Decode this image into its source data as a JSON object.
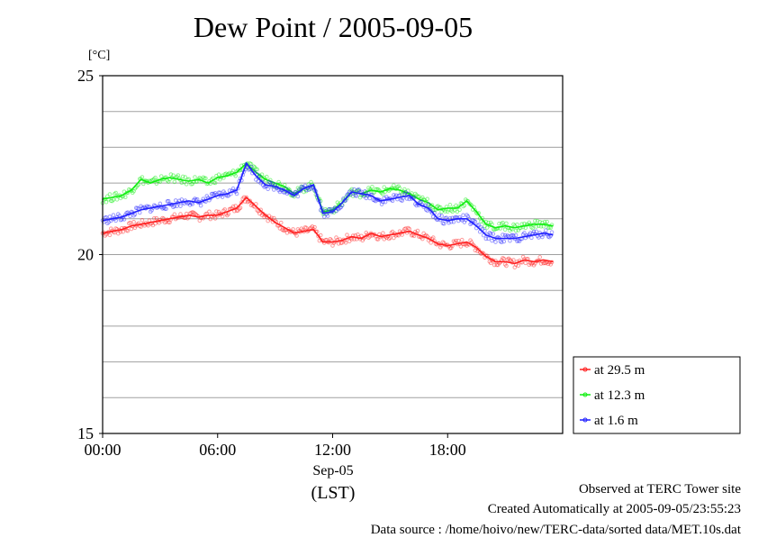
{
  "title": "Dew Point / 2005-09-05",
  "y_unit": "[°C]",
  "x_date_label": "Sep-05",
  "x_tz_label": "(LST)",
  "footer": {
    "line1": "Observed at TERC Tower site",
    "line2": "Created Automatically at 2005-09-05/23:55:23",
    "line3": "Data source : /home/hoivo/new/TERC-data/sorted  data/MET.10s.dat"
  },
  "colors": {
    "red": "#ff2020",
    "green": "#10ee10",
    "blue": "#2020ff"
  },
  "chart_data": {
    "type": "line",
    "title": "Dew Point / 2005-09-05",
    "ylabel": "[°C]",
    "xlabel": "(LST)",
    "ylim": [
      15,
      25
    ],
    "xlim": [
      0,
      24
    ],
    "y_ticks": [
      "15",
      "20",
      "25"
    ],
    "x_ticks": [
      "00:00",
      "06:00",
      "12:00",
      "18:00"
    ],
    "grid": "horizontal every 1 °C",
    "legend": "right",
    "x_hours": [
      0,
      0.5,
      1,
      1.5,
      2,
      2.5,
      3,
      3.5,
      4,
      4.5,
      5,
      5.5,
      6,
      6.5,
      7,
      7.5,
      8,
      8.5,
      9,
      9.5,
      10,
      10.5,
      11,
      11.5,
      12,
      12.5,
      13,
      13.5,
      14,
      14.5,
      15,
      15.5,
      16,
      16.5,
      17,
      17.5,
      18,
      18.5,
      19,
      19.5,
      20,
      20.5,
      21,
      21.5,
      22,
      22.5,
      23,
      23.5
    ],
    "series": [
      {
        "name": "at 29.5 m",
        "color": "#ff2020",
        "values": [
          20.6,
          20.65,
          20.7,
          20.8,
          20.85,
          20.9,
          20.95,
          21.0,
          21.05,
          21.1,
          21.05,
          21.1,
          21.1,
          21.2,
          21.3,
          21.6,
          21.35,
          21.1,
          20.9,
          20.75,
          20.6,
          20.65,
          20.7,
          20.35,
          20.35,
          20.4,
          20.5,
          20.45,
          20.6,
          20.5,
          20.55,
          20.6,
          20.65,
          20.55,
          20.45,
          20.3,
          20.25,
          20.3,
          20.35,
          20.2,
          19.95,
          19.8,
          19.8,
          19.75,
          19.85,
          19.8,
          19.85,
          19.8
        ]
      },
      {
        "name": "at 12.3 m",
        "color": "#10ee10",
        "values": [
          21.55,
          21.6,
          21.65,
          21.8,
          22.1,
          22.0,
          22.1,
          22.15,
          22.1,
          22.05,
          22.1,
          22.0,
          22.15,
          22.2,
          22.3,
          22.55,
          22.3,
          22.1,
          22.0,
          21.9,
          21.7,
          21.85,
          21.95,
          21.2,
          21.25,
          21.45,
          21.75,
          21.7,
          21.8,
          21.75,
          21.85,
          21.8,
          21.7,
          21.55,
          21.45,
          21.25,
          21.3,
          21.3,
          21.5,
          21.2,
          20.85,
          20.75,
          20.8,
          20.75,
          20.8,
          20.85,
          20.85,
          20.8
        ]
      },
      {
        "name": "at 1.6 m",
        "color": "#2020ff",
        "values": [
          20.95,
          21.0,
          21.05,
          21.15,
          21.25,
          21.3,
          21.35,
          21.4,
          21.45,
          21.5,
          21.45,
          21.55,
          21.65,
          21.7,
          21.8,
          22.55,
          22.2,
          21.95,
          21.9,
          21.8,
          21.65,
          21.85,
          21.95,
          21.15,
          21.2,
          21.45,
          21.75,
          21.7,
          21.65,
          21.5,
          21.55,
          21.6,
          21.65,
          21.4,
          21.3,
          21.0,
          20.95,
          21.0,
          21.0,
          20.8,
          20.55,
          20.45,
          20.45,
          20.45,
          20.5,
          20.55,
          20.6,
          20.55
        ]
      }
    ]
  }
}
